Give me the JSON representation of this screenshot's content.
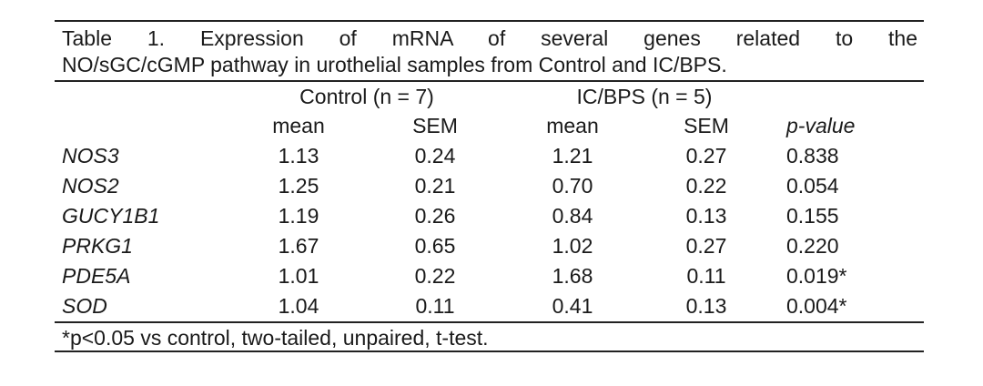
{
  "caption": {
    "line1": "Table 1. Expression of mRNA of several genes related to the",
    "line2": "NO/sGC/cGMP pathway in urothelial samples from Control and IC/BPS."
  },
  "groups": {
    "control": "Control (n = 7)",
    "icbps": "IC/BPS (n = 5)"
  },
  "columns": [
    "mean",
    "SEM",
    "mean",
    "SEM",
    "p-value"
  ],
  "rows": [
    {
      "gene": "NOS3",
      "control_mean": "1.13",
      "control_sem": "0.24",
      "icbps_mean": "1.21",
      "icbps_sem": "0.27",
      "p_value": "0.838"
    },
    {
      "gene": "NOS2",
      "control_mean": "1.25",
      "control_sem": "0.21",
      "icbps_mean": "0.70",
      "icbps_sem": "0.22",
      "p_value": "0.054"
    },
    {
      "gene": "GUCY1B1",
      "control_mean": "1.19",
      "control_sem": "0.26",
      "icbps_mean": "0.84",
      "icbps_sem": "0.13",
      "p_value": "0.155"
    },
    {
      "gene": "PRKG1",
      "control_mean": "1.67",
      "control_sem": "0.65",
      "icbps_mean": "1.02",
      "icbps_sem": "0.27",
      "p_value": "0.220"
    },
    {
      "gene": "PDE5A",
      "control_mean": "1.01",
      "control_sem": "0.22",
      "icbps_mean": "1.68",
      "icbps_sem": "0.11",
      "p_value": "0.019*"
    },
    {
      "gene": "SOD",
      "control_mean": "1.04",
      "control_sem": "0.11",
      "icbps_mean": "0.41",
      "icbps_sem": "0.13",
      "p_value": "0.004*"
    }
  ],
  "footnote": "*p<0.05 vs control, two-tailed, unpaired, t-test."
}
